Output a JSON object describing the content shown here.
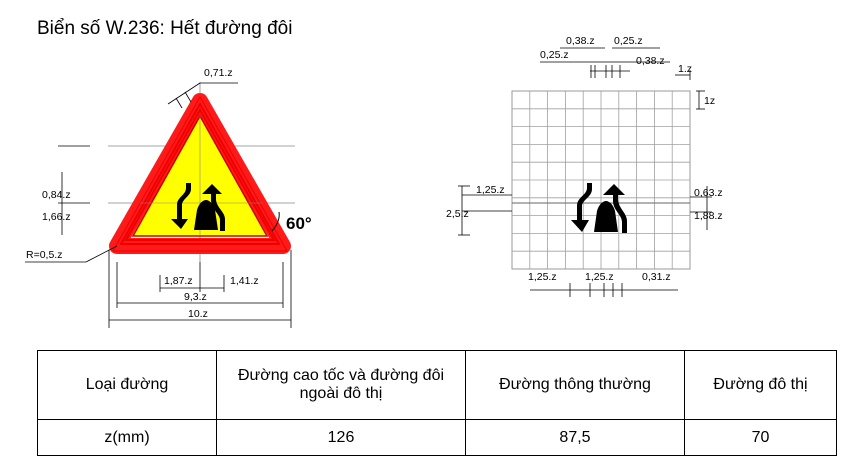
{
  "title": "Biển số W.236: Hết đường đôi",
  "left_dims": {
    "top_offset": "0,71.z",
    "h1": "0,84.z",
    "h2": "1,66.z",
    "radius": "R=0,5.z",
    "angle": "60°",
    "w_left": "1,87.z",
    "w_right": "1,41.z",
    "inner_width": "9,3.z",
    "outer_width": "10.z"
  },
  "right_dims": {
    "t1": "0,38.z",
    "t2": "0,25.z",
    "t3": "0,25.z",
    "t4": "0,38.z",
    "t5": "1.z",
    "cell": "1z",
    "l1": "1,25.z",
    "l2": "2,5.z",
    "r1": "0,63.z",
    "r2": "1,88.z",
    "b1": "1,25.z",
    "b2": "1,25.z",
    "b3": "0,31.z"
  },
  "colors": {
    "border_red": "#ff1a1a",
    "fill_yellow": "#ffff00",
    "symbol": "#000000",
    "grid": "#a0a0a0"
  },
  "table": {
    "header": [
      "Loại đường",
      "Đường cao tốc và đường đôi ngoài đô thị",
      "Đường thông thường",
      "Đường đô thị"
    ],
    "row": [
      "z(mm)",
      "126",
      "87,5",
      "70"
    ]
  }
}
